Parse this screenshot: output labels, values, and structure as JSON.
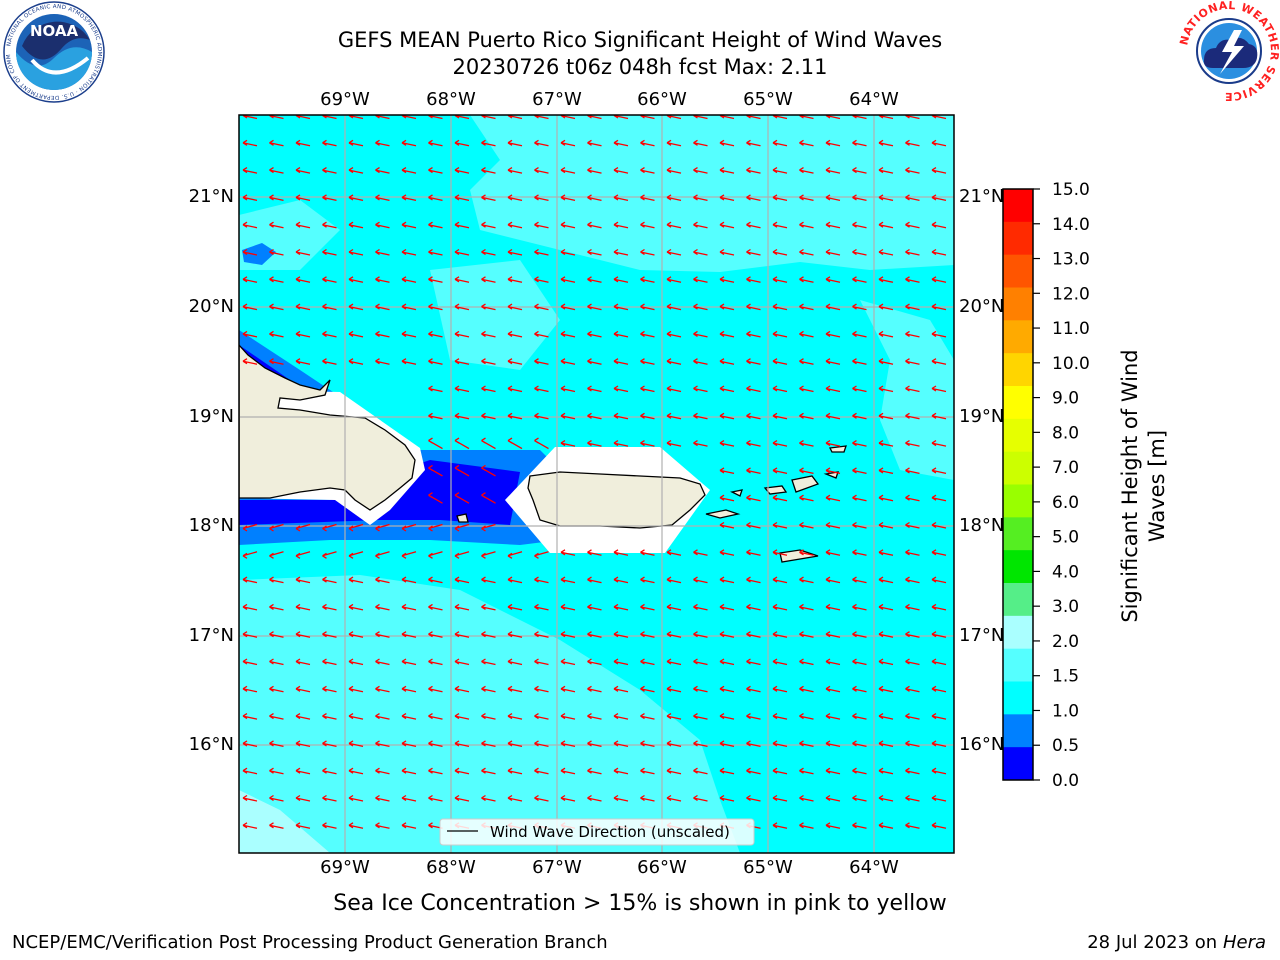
{
  "title_line1": "GEFS MEAN Puerto Rico Significant Height of Wind Waves",
  "title_line2": "20230726 t06z 048h fcst   Max: 2.11",
  "lon_labels": [
    "69°W",
    "68°W",
    "67°W",
    "66°W",
    "65°W",
    "64°W"
  ],
  "lat_labels": [
    "21°N",
    "20°N",
    "19°N",
    "18°N",
    "17°N",
    "16°N"
  ],
  "legend_label": "Wind Wave Direction (unscaled)",
  "colorbar": {
    "label_line1": "Significant Height of Wind",
    "label_line2": "Waves [m]",
    "ticks": [
      "15.0",
      "14.0",
      "13.0",
      "12.0",
      "11.0",
      "10.0",
      "9.0",
      "8.0",
      "7.0",
      "6.0",
      "5.0",
      "4.0",
      "3.0",
      "2.0",
      "1.5",
      "1.0",
      "0.5",
      "0.0"
    ],
    "colors": [
      "#ff0000",
      "#ff2a00",
      "#ff5500",
      "#ff8000",
      "#ffaa00",
      "#ffd500",
      "#ffff00",
      "#e6ff00",
      "#ccff00",
      "#99ff00",
      "#55ee22",
      "#00e600",
      "#55ee88",
      "#aaffff",
      "#55ffff",
      "#00ffff",
      "#0080ff",
      "#0000ff"
    ]
  },
  "colors": {
    "ocean": "#00ffff",
    "light_ocean": "#55ffff",
    "pale_ocean": "#aaffff",
    "mid_blue": "#0080ff",
    "dark_blue": "#0000ff",
    "land": "#f0eedc",
    "arrow": "#ff0000"
  },
  "sea_ice_note": "Sea Ice Concentration > 15% is shown in pink to yellow",
  "footer_left": "NCEP/EMC/Verification Post Processing Product Generation Branch",
  "footer_right_date": "28 Jul 2023 on ",
  "footer_right_host": "Hera",
  "logo_left_text": "NOAA",
  "logo_left_ring": "NATIONAL OCEANIC AND ATMOSPHERIC ADMINISTRATION · U.S. DEPARTMENT OF COMMERCE",
  "logo_right_ring": "NATIONAL WEATHER SERVICE"
}
